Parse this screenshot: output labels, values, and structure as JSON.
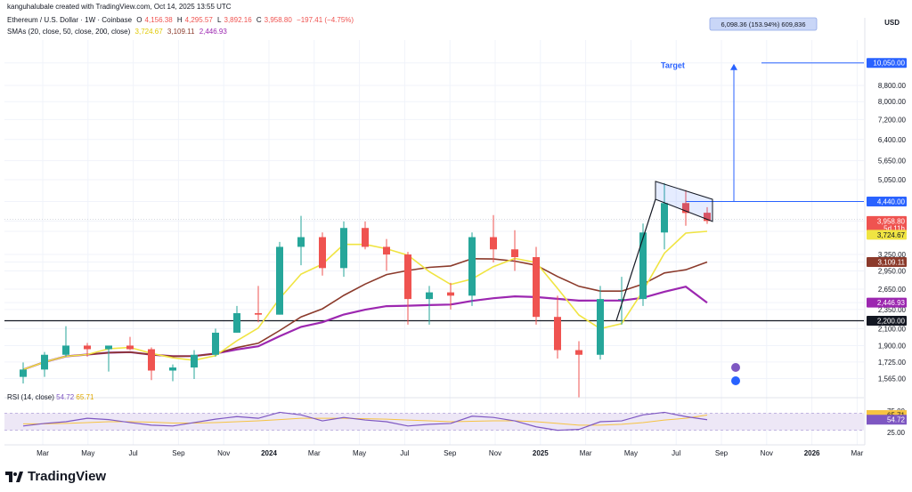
{
  "header": {
    "credit": "kanguhalubale created with TradingView.com, Oct 14, 2025 13:55 UTC",
    "symbol": "Ethereum / U.S. Dollar · 1W · Coinbase",
    "ohlc": {
      "o_label": "O",
      "o": "4,156.38",
      "h_label": "H",
      "h": "4,295.57",
      "l_label": "L",
      "l": "3,892.16",
      "c_label": "C",
      "c": "3,958.80",
      "change": "−197.41 (−4.75%)"
    },
    "sma_label": "SMAs (20, close, 50, close, 200, close)",
    "sma_values": [
      "3,724.67",
      "3,109.11",
      "2,446.93"
    ]
  },
  "brand": "TradingView",
  "colors": {
    "up": "#26a69a",
    "down": "#ef5350",
    "sma20": "#f0e442",
    "sma50": "#8b3a2b",
    "sma200": "#9c27b0",
    "accent": "#2962ff",
    "rsi": "#7e57c2",
    "rsi_band": "#ede7f6"
  },
  "chart_data": {
    "type": "candlestick",
    "title": "Ethereum / U.S. Dollar · 1W · Coinbase",
    "ylabel": "USD",
    "yscale": "log",
    "ylim": [
      1450,
      11500
    ],
    "y_ticks": [
      "10,050.00",
      "8,800.00",
      "8,000.00",
      "7,200.00",
      "6,400.00",
      "5,650.00",
      "5,050.00",
      "4,440.00",
      "3,958.80",
      "3,724.67",
      "3,250.00",
      "3,109.11",
      "2,950.00",
      "2,650.00",
      "2,446.93",
      "2,350.00",
      "2,200.00",
      "2,100.00",
      "1,900.00",
      "1,725.00",
      "1,565.00"
    ],
    "x_ticks": [
      "Mar",
      "May",
      "Jul",
      "Sep",
      "Nov",
      "2024",
      "Mar",
      "May",
      "Jul",
      "Sep",
      "Nov",
      "2025",
      "Mar",
      "May",
      "Jul",
      "Sep",
      "Nov",
      "2026",
      "Mar"
    ],
    "candles_monthly_approx": [
      {
        "period": "2023-02",
        "open": 1580,
        "high": 1720,
        "low": 1520,
        "close": 1650
      },
      {
        "period": "2023-03",
        "open": 1650,
        "high": 1830,
        "low": 1580,
        "close": 1800
      },
      {
        "period": "2023-04",
        "open": 1800,
        "high": 2130,
        "low": 1780,
        "close": 1900
      },
      {
        "period": "2023-05",
        "open": 1900,
        "high": 1930,
        "low": 1780,
        "close": 1860
      },
      {
        "period": "2023-06",
        "open": 1860,
        "high": 1900,
        "low": 1630,
        "close": 1900
      },
      {
        "period": "2023-07",
        "open": 1900,
        "high": 2000,
        "low": 1850,
        "close": 1860
      },
      {
        "period": "2023-08",
        "open": 1860,
        "high": 1880,
        "low": 1550,
        "close": 1640
      },
      {
        "period": "2023-09",
        "open": 1640,
        "high": 1700,
        "low": 1540,
        "close": 1670
      },
      {
        "period": "2023-10",
        "open": 1670,
        "high": 1850,
        "low": 1560,
        "close": 1800
      },
      {
        "period": "2023-11",
        "open": 1800,
        "high": 2100,
        "low": 1780,
        "close": 2050
      },
      {
        "period": "2023-12",
        "open": 2050,
        "high": 2400,
        "low": 2050,
        "close": 2300
      },
      {
        "period": "2024-01",
        "open": 2300,
        "high": 2700,
        "low": 2180,
        "close": 2280
      },
      {
        "period": "2024-02",
        "open": 2280,
        "high": 3500,
        "low": 2280,
        "close": 3400
      },
      {
        "period": "2024-03",
        "open": 3400,
        "high": 4080,
        "low": 3050,
        "close": 3600
      },
      {
        "period": "2024-04",
        "open": 3600,
        "high": 3700,
        "low": 2870,
        "close": 3000
      },
      {
        "period": "2024-05",
        "open": 3000,
        "high": 3950,
        "low": 2850,
        "close": 3800
      },
      {
        "period": "2024-06",
        "open": 3800,
        "high": 3950,
        "low": 3350,
        "close": 3400
      },
      {
        "period": "2024-07",
        "open": 3400,
        "high": 3560,
        "low": 2950,
        "close": 3250
      },
      {
        "period": "2024-08",
        "open": 3250,
        "high": 3300,
        "low": 2150,
        "close": 2500
      },
      {
        "period": "2024-09",
        "open": 2500,
        "high": 2700,
        "low": 2150,
        "close": 2600
      },
      {
        "period": "2024-10",
        "open": 2600,
        "high": 2750,
        "low": 2350,
        "close": 2550
      },
      {
        "period": "2024-11",
        "open": 2550,
        "high": 3700,
        "low": 2400,
        "close": 3600
      },
      {
        "period": "2024-12",
        "open": 3600,
        "high": 4100,
        "low": 3100,
        "close": 3350
      },
      {
        "period": "2025-01",
        "open": 3350,
        "high": 3750,
        "low": 2950,
        "close": 3200
      },
      {
        "period": "2025-02",
        "open": 3200,
        "high": 3400,
        "low": 2150,
        "close": 2250
      },
      {
        "period": "2025-03",
        "open": 2250,
        "high": 2550,
        "low": 1760,
        "close": 1850
      },
      {
        "period": "2025-04",
        "open": 1850,
        "high": 1950,
        "low": 1400,
        "close": 1800
      },
      {
        "period": "2025-05",
        "open": 1800,
        "high": 2700,
        "low": 1750,
        "close": 2500
      },
      {
        "period": "2025-06",
        "open": 2500,
        "high": 2850,
        "low": 2150,
        "close": 2500
      },
      {
        "period": "2025-07",
        "open": 2500,
        "high": 3900,
        "low": 2400,
        "close": 3700
      },
      {
        "period": "2025-08",
        "open": 3700,
        "high": 4950,
        "low": 3350,
        "close": 4400
      },
      {
        "period": "2025-09",
        "open": 4400,
        "high": 4750,
        "low": 3850,
        "close": 4150
      },
      {
        "period": "2025-10",
        "open": 4156.38,
        "high": 4295.57,
        "low": 3892.16,
        "close": 3958.8
      }
    ],
    "series": [
      {
        "name": "SMA 20",
        "last": 3724.67
      },
      {
        "name": "SMA 50",
        "last": 3109.11
      },
      {
        "name": "SMA 200",
        "last": 2446.93
      }
    ],
    "levels": [
      {
        "label": "10,050.00",
        "value": 10050
      },
      {
        "label": "4,440.00",
        "value": 4440
      },
      {
        "label": "2,200.00",
        "value": 2200
      }
    ],
    "annotations": {
      "target_text": "Target",
      "measure_text": "6,098.36 (153.94%) 609,836",
      "countdown": "5d 11h"
    },
    "rsi": {
      "label": "RSI (14, close)",
      "values_text": [
        "54.72",
        "65.71"
      ],
      "axis_ticks": [
        "75.00",
        "25.00"
      ],
      "series": [
        40,
        46,
        50,
        58,
        55,
        48,
        42,
        40,
        48,
        56,
        62,
        58,
        72,
        66,
        52,
        60,
        54,
        50,
        40,
        44,
        46,
        63,
        60,
        52,
        38,
        30,
        32,
        50,
        52,
        66,
        72,
        62,
        54.72
      ],
      "signal": [
        45,
        45,
        46,
        48,
        50,
        50,
        49,
        47,
        47,
        48,
        50,
        52,
        55,
        58,
        58,
        58,
        57,
        56,
        54,
        52,
        50,
        51,
        52,
        52,
        50,
        46,
        42,
        42,
        44,
        48,
        54,
        58,
        65.71
      ]
    }
  }
}
